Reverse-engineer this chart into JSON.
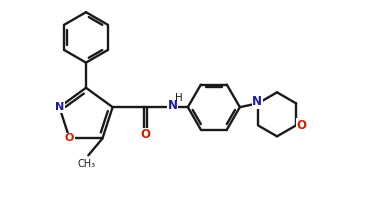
{
  "bg_color": "#ffffff",
  "line_color": "#1a1a1a",
  "blue_color": "#1a1aaa",
  "red_color": "#cc2200",
  "lw": 1.7,
  "doff": 0.07,
  "shrink": 0.12,
  "fig_w": 3.8,
  "fig_h": 2.18,
  "dpi": 100,
  "xlim": [
    0,
    9.5
  ],
  "ylim": [
    0,
    5.44
  ]
}
